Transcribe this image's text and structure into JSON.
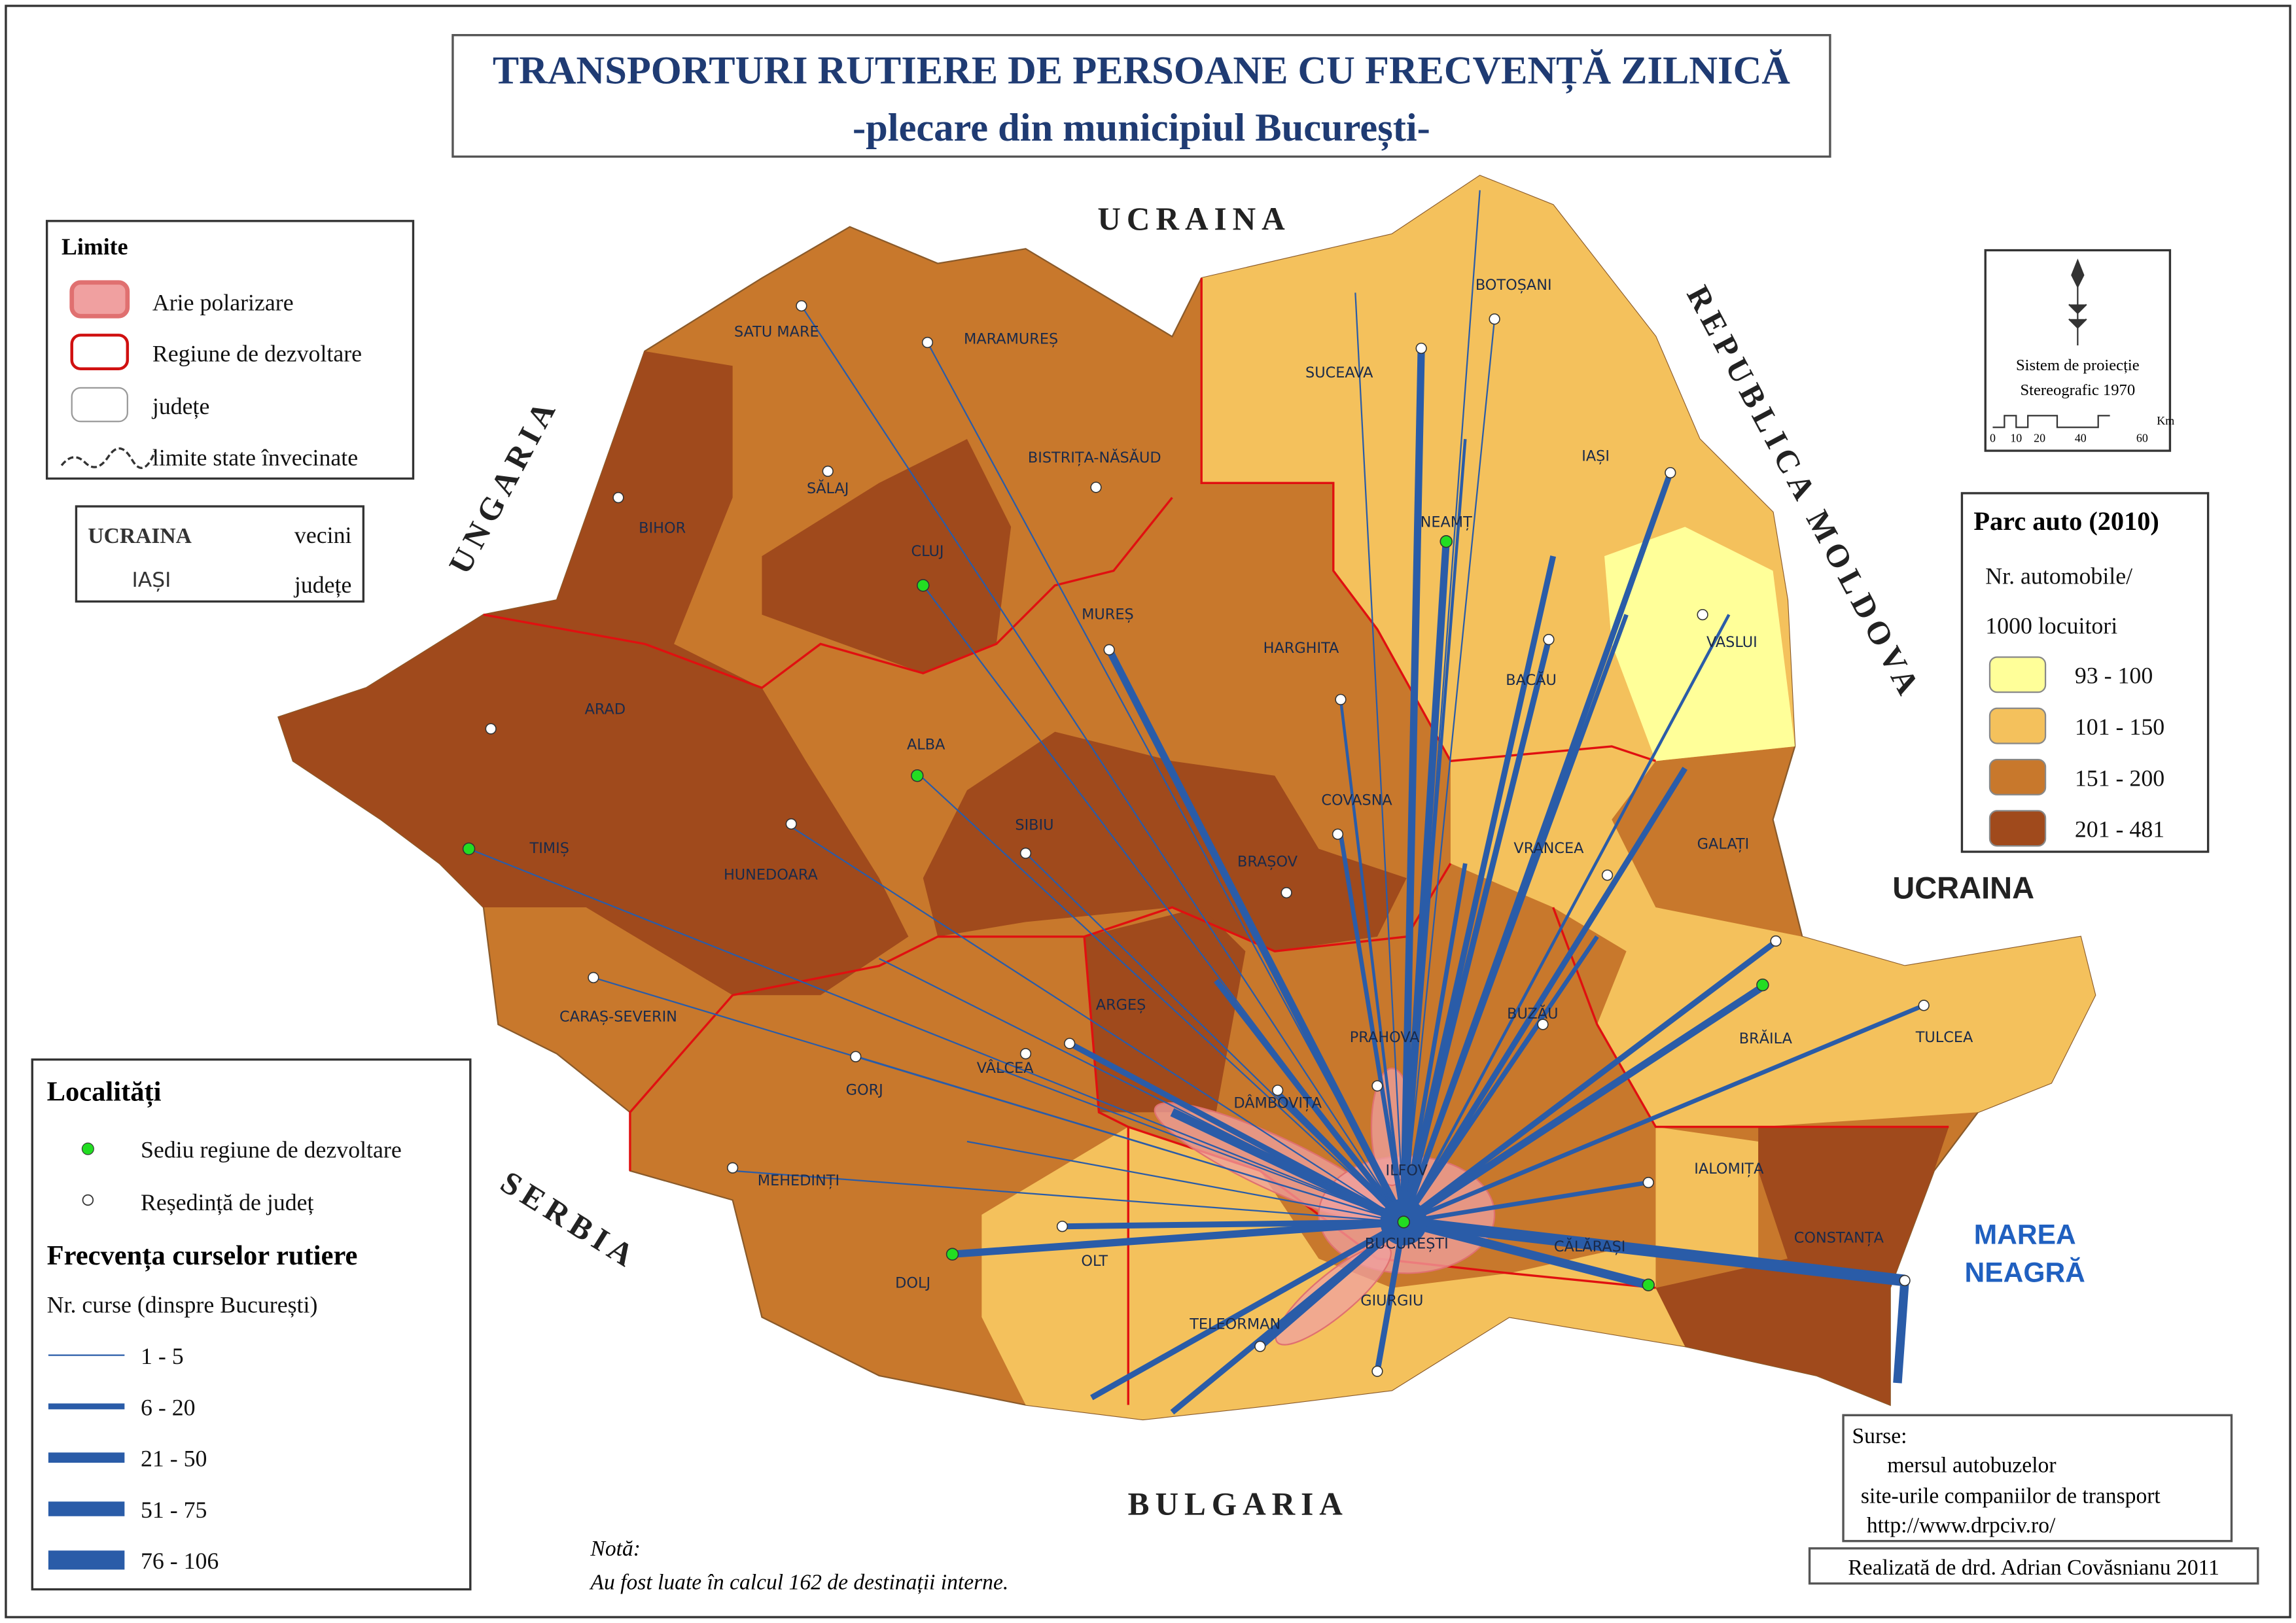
{
  "title": {
    "line1": "TRANSPORTURI RUTIERE DE PERSOANE CU FRECVENȚĂ ZILNICĂ",
    "line2": "-plecare din municipiul București-"
  },
  "neighbors": {
    "north": "UCRAINA",
    "west": "UNGARIA",
    "east": "REPUBLICA MOLDOVA",
    "southwest": "SERBIA",
    "south": "BULGARIA",
    "southeast": "UCRAINA"
  },
  "sea": [
    "MAREA",
    "NEAGRĂ"
  ],
  "counties": [
    "SATU MARE",
    "MARAMUREȘ",
    "BOTOȘANI",
    "SUCEAVA",
    "BISTRIȚA-NĂSĂUD",
    "SĂLAJ",
    "BIHOR",
    "CLUJ",
    "IAȘI",
    "NEAMȚ",
    "MUREȘ",
    "HARGHITA",
    "VASLUI",
    "BACĂU",
    "ARAD",
    "ALBA",
    "COVASNA",
    "SIBIU",
    "TIMIȘ",
    "HUNEDOARA",
    "BRAȘOV",
    "VRANCEA",
    "GALAȚI",
    "CARAȘ-SEVERIN",
    "ARGEȘ",
    "BUZĂU",
    "BRĂILA",
    "TULCEA",
    "GORJ",
    "VÂLCEA",
    "PRAHOVA",
    "DÂMBOVIȚA",
    "ILFOV",
    "MEHEDINȚI",
    "BUCUREȘTI",
    "IALOMIȚA",
    "CĂLĂRAȘI",
    "CONSTANȚA",
    "OLT",
    "DOLJ",
    "GIURGIU",
    "TELEORMAN"
  ],
  "legend_limits": {
    "title": "Limite",
    "items": [
      "Arie polarizare",
      "Regiune de dezvoltare",
      "județe",
      "limite state învecinate"
    ]
  },
  "legend_labels": {
    "neighbor_sample": "UCRAINA",
    "neighbor_text": "vecini",
    "county_sample": "IAȘI",
    "county_text": "județe"
  },
  "projection": {
    "lines": [
      "Sistem de proiecție",
      "Stereografic 1970"
    ],
    "scale": [
      "0",
      "10",
      "20",
      "40",
      "60"
    ],
    "unit": "Km"
  },
  "legend_car": {
    "title": "Parc auto (2010)",
    "subtitle": [
      "Nr. automobile/",
      "1000 locuitori"
    ],
    "classes": [
      {
        "label": "93 - 100",
        "color": "#ffff99"
      },
      {
        "label": "101 - 150",
        "color": "#f4c15c"
      },
      {
        "label": "151 - 200",
        "color": "#c8782c"
      },
      {
        "label": "201 - 481",
        "color": "#a04a1c"
      }
    ]
  },
  "legend_places": {
    "title": "Localități",
    "items": [
      "Sediu regiune de dezvoltare",
      "Reședință de județ"
    ]
  },
  "legend_frequency": {
    "title": "Frecvența curselor rutiere",
    "subtitle": "Nr. curse (dinspre București)",
    "classes": [
      "1 - 5",
      "6 - 20",
      "21 - 50",
      "51 - 75",
      "76 - 106"
    ]
  },
  "note": {
    "title": "Notă:",
    "text": "Au fost luate în calcul 162 de destinații interne."
  },
  "sources": {
    "title": "Surse:",
    "items": [
      "mersul autobuzelor",
      "site-urile companiilor de transport",
      "http://www.drpciv.ro/"
    ]
  },
  "credit": "Realizată de drd. Adrian Covăsnianu 2011"
}
